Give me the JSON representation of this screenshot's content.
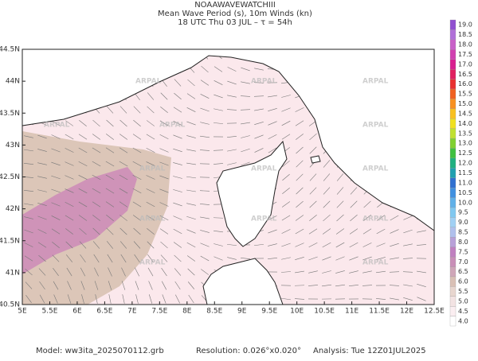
{
  "header": {
    "title": "NOAAWAVEWATCHIII",
    "subtitle": "Mean Wave Period (s), 10m Winds (kn)",
    "time": "18 UTC Thu 03 JUL  –  τ = 54h"
  },
  "map": {
    "lon_labels": [
      "5E",
      "5.5E",
      "6E",
      "6.5E",
      "7E",
      "7.5E",
      "8E",
      "8.5E",
      "9E",
      "9.5E",
      "10E",
      "10.5E",
      "11E",
      "11.5E",
      "12E",
      "12.5E"
    ],
    "lat_labels": [
      "40.5N",
      "41N",
      "41.5N",
      "42N",
      "42.5N",
      "43N",
      "43.5N",
      "44N",
      "44.5N"
    ],
    "watermark": "ARPAL"
  },
  "colorbar": {
    "labels": [
      "4.0",
      "4.5",
      "5.0",
      "5.5",
      "6.0",
      "6.5",
      "7.0",
      "7.5",
      "8.0",
      "8.5",
      "9.0",
      "9.5",
      "10.0",
      "10.5",
      "11.0",
      "11.5",
      "12.0",
      "12.5",
      "13.0",
      "13.5",
      "14.0",
      "14.5",
      "15.0",
      "15.5",
      "16.0",
      "16.5",
      "17.0",
      "17.5",
      "18.0",
      "18.5",
      "19.0"
    ],
    "colors": [
      "#ffffff",
      "#fbeef1",
      "#f3e3e3",
      "#e8d6cf",
      "#d9c0b5",
      "#cfa6b8",
      "#c98fb8",
      "#c080c0",
      "#b8a0d8",
      "#b0c0ec",
      "#a0d0f4",
      "#80c8f0",
      "#60b0e8",
      "#4090e0",
      "#3070d0",
      "#20a0b0",
      "#20b080",
      "#40c040",
      "#80d030",
      "#c0e030",
      "#f0e020",
      "#f8c020",
      "#f89020",
      "#f06020",
      "#e83030",
      "#e02060",
      "#d82090",
      "#d040b0",
      "#c860c8",
      "#b070d8",
      "#9050d0"
    ]
  },
  "footer": {
    "model": "Model:  ww3ita_2025070112.grb",
    "resolution": "Resolution:  0.026°x0.020°",
    "analysis": "Analysis:  Tue  12Z01JUL2025"
  }
}
